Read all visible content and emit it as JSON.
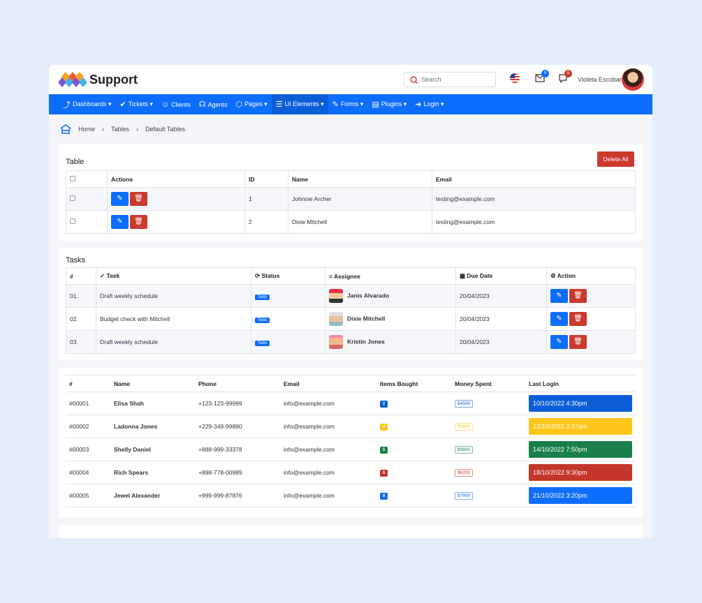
{
  "header": {
    "brand": "Support",
    "search_placeholder": "Search",
    "mail_count": "9",
    "chat_count": "5",
    "user_name": "Violeta Escobar"
  },
  "nav": [
    {
      "label": "Dashboards ▾",
      "icon": "chart-icon"
    },
    {
      "label": "Tickets ▾",
      "icon": "ticket-icon"
    },
    {
      "label": "Clients",
      "icon": "smile-icon"
    },
    {
      "label": "Agents",
      "icon": "headset-icon"
    },
    {
      "label": "Pages ▾",
      "icon": "box-icon"
    },
    {
      "label": "UI Elements ▾",
      "icon": "layers-icon",
      "active": true
    },
    {
      "label": "Forms ▾",
      "icon": "pen-icon"
    },
    {
      "label": "Plugins ▾",
      "icon": "document-icon"
    },
    {
      "label": "Login ▾",
      "icon": "login-icon"
    }
  ],
  "breadcrumb": [
    "Home",
    "Tables",
    "Default Tables"
  ],
  "table1": {
    "title": "Table",
    "delete_all": "Delete All",
    "headers": [
      "Actions",
      "ID",
      "Name",
      "Email"
    ],
    "rows": [
      [
        "1",
        "Johnnie Archer",
        "testing@example.com"
      ],
      [
        "2",
        "Dixie Mitchell",
        "testing@example.com"
      ]
    ]
  },
  "tasks": {
    "title": "Tasks",
    "headers": [
      "#",
      "Task",
      "Status",
      "Assignee",
      "Due Date",
      "Action"
    ],
    "rows": [
      [
        "01.",
        "Draft weekly schedule",
        "Todo",
        "Janis Alvarado",
        "20/04/2023"
      ],
      [
        "02.",
        "Budget check with Mitchell",
        "Todo",
        "Dixie Mitchell",
        "20/04/2023"
      ],
      [
        "03.",
        "Draft weekly schedule",
        "Todo",
        "Kristin Jones",
        "20/04/2023"
      ]
    ]
  },
  "customers": {
    "headers": [
      "#",
      "Name",
      "Phone",
      "Email",
      "Items Bought",
      "Money Spent",
      "Last Login"
    ],
    "rows": [
      [
        "#00001",
        "Elisa Shah",
        "+123-123-99999",
        "info@example.com",
        "2",
        "$4500",
        "10/10/2022 4:30pm",
        "#0b5ed7"
      ],
      [
        "#00002",
        "Ladonna Jones",
        "+229-349-99890",
        "info@example.com",
        "4",
        "$3800",
        "12/10/2022 2:37am",
        "#ffc619"
      ],
      [
        "#00003",
        "Shelly Daniel",
        "+888-999-33378",
        "info@example.com",
        "5",
        "$9800",
        "14/10/2022 7:50pm",
        "#198049"
      ],
      [
        "#00004",
        "Rich Spears",
        "+898-778-00989",
        "info@example.com",
        "6",
        "$6200",
        "18/10/2022 9:30pm",
        "#c4352a"
      ],
      [
        "#00005",
        "Jewel Alexander",
        "+999-999-87876",
        "info@example.com",
        "8",
        "$7900",
        "21/10/2022 3:20pm",
        "#0d6efd"
      ]
    ]
  }
}
